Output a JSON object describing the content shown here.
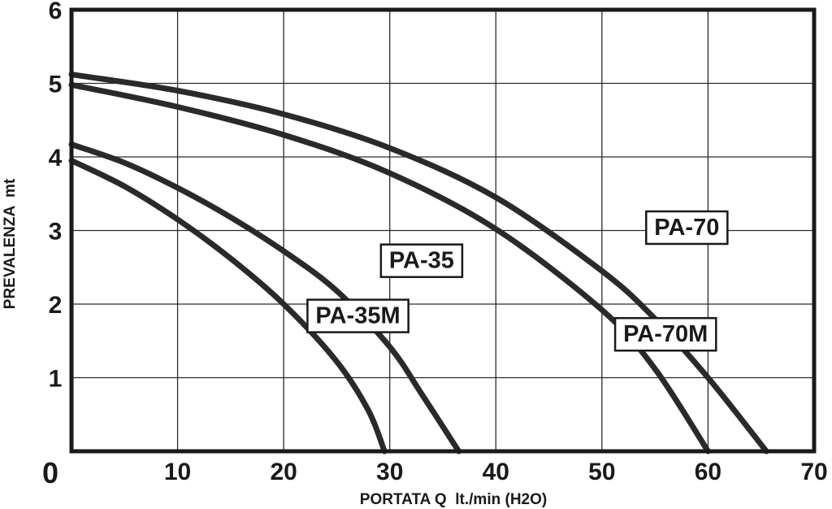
{
  "chart_data": {
    "type": "line",
    "title": "",
    "xlabel": "PORTATA Q  lt./min (H2O)",
    "ylabel": "PREVALENZA  mt",
    "xlim": [
      0,
      70
    ],
    "ylim": [
      0,
      6
    ],
    "x_ticks": [
      "0",
      "10",
      "20",
      "30",
      "40",
      "50",
      "60",
      "70"
    ],
    "y_ticks": [
      "1",
      "2",
      "3",
      "4",
      "5",
      "6"
    ],
    "grid": true,
    "legend": "none",
    "series": [
      {
        "name": "PA-35M",
        "points": [
          [
            0,
            3.95
          ],
          [
            5,
            3.6
          ],
          [
            10,
            3.15
          ],
          [
            15,
            2.62
          ],
          [
            20,
            2.0
          ],
          [
            25,
            1.22
          ],
          [
            28,
            0.55
          ],
          [
            29.5,
            0
          ]
        ],
        "label_at": [
          27,
          1.85
        ]
      },
      {
        "name": "PA-35",
        "points": [
          [
            0,
            4.17
          ],
          [
            5,
            3.92
          ],
          [
            10,
            3.58
          ],
          [
            15,
            3.18
          ],
          [
            20,
            2.72
          ],
          [
            25,
            2.18
          ],
          [
            30,
            1.42
          ],
          [
            33,
            0.78
          ],
          [
            36.5,
            0
          ]
        ],
        "label_at": [
          33,
          2.6
        ]
      },
      {
        "name": "PA-70M",
        "points": [
          [
            0,
            4.98
          ],
          [
            10,
            4.68
          ],
          [
            20,
            4.3
          ],
          [
            30,
            3.78
          ],
          [
            40,
            3.02
          ],
          [
            50,
            1.92
          ],
          [
            55,
            1.12
          ],
          [
            60,
            0
          ]
        ],
        "label_at": [
          56,
          1.6
        ]
      },
      {
        "name": "PA-70",
        "points": [
          [
            0,
            5.12
          ],
          [
            10,
            4.9
          ],
          [
            20,
            4.58
          ],
          [
            30,
            4.12
          ],
          [
            40,
            3.45
          ],
          [
            50,
            2.45
          ],
          [
            55,
            1.8
          ],
          [
            60,
            1.0
          ],
          [
            65.5,
            0
          ]
        ],
        "label_at": [
          58,
          3.05
        ]
      }
    ]
  }
}
